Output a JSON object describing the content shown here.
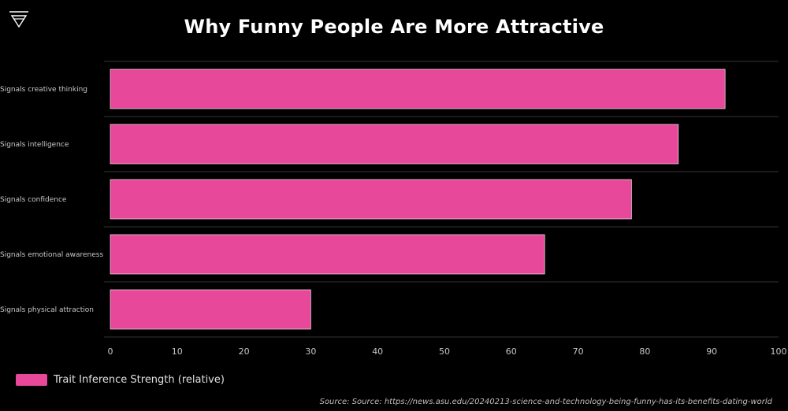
{
  "logo": {
    "icon": "triangle-logo-icon"
  },
  "colors": {
    "background": "#000000",
    "bar": "#e8489a",
    "grid": "#333333",
    "text": "#c8c8c8"
  },
  "chart_data": {
    "type": "bar",
    "orientation": "horizontal",
    "title": "Why Funny People Are More Attractive",
    "categories": [
      "Signals creative thinking",
      "Signals intelligence",
      "Signals confidence",
      "Signals emotional awareness",
      "Signals physical attraction"
    ],
    "series": [
      {
        "name": "Trait Inference Strength (relative)",
        "values": [
          92,
          85,
          78,
          65,
          30
        ]
      }
    ],
    "xlim": [
      0,
      100
    ],
    "xticks": [
      0,
      10,
      20,
      30,
      40,
      50,
      60,
      70,
      80,
      90,
      100
    ],
    "grid": "horizontal separators between categories",
    "legend": "bottom-left"
  },
  "source": "Source: Source: https://news.asu.edu/20240213-science-and-technology-being-funny-has-its-benefits-dating-world"
}
